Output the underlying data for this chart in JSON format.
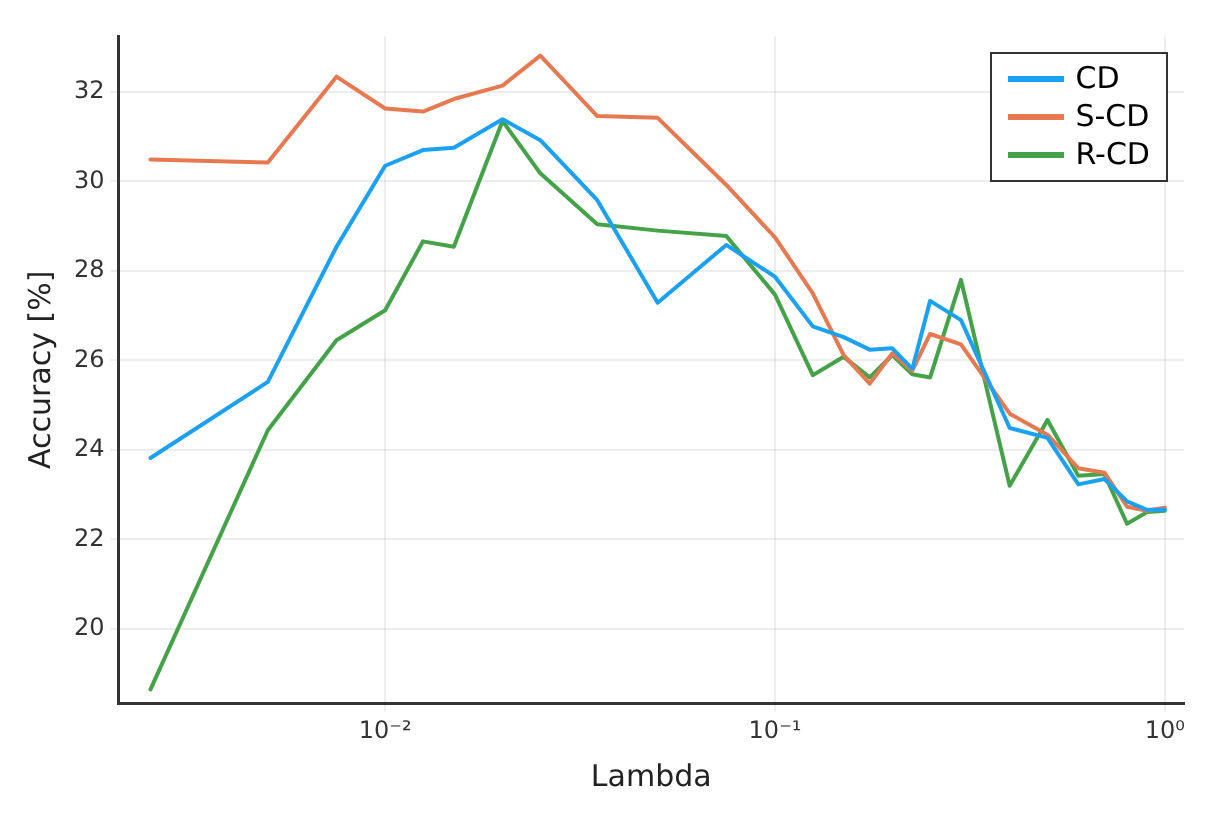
{
  "chart_data": {
    "type": "line",
    "xlabel": "Lambda",
    "ylabel": "Accuracy [%]",
    "x": [
      0.0025,
      0.005,
      0.0075,
      0.01,
      0.0125,
      0.015,
      0.02,
      0.025,
      0.035,
      0.05,
      0.075,
      0.1,
      0.125,
      0.15,
      0.175,
      0.2,
      0.225,
      0.25,
      0.3,
      0.4,
      0.5,
      0.6,
      0.7,
      0.8,
      0.9,
      1.0
    ],
    "series": [
      {
        "name": "CD",
        "color": "#1ba1f2",
        "values": [
          23.82,
          25.52,
          28.54,
          30.35,
          30.7,
          30.75,
          31.39,
          30.92,
          29.58,
          27.29,
          28.58,
          27.87,
          26.76,
          26.52,
          26.24,
          26.27,
          25.81,
          27.33,
          26.9,
          24.49,
          24.27,
          23.23,
          23.35,
          22.85,
          22.66,
          22.66
        ]
      },
      {
        "name": "S-CD",
        "color": "#e6794f",
        "values": [
          30.49,
          30.42,
          32.34,
          31.63,
          31.56,
          31.84,
          32.14,
          32.81,
          31.46,
          31.42,
          29.92,
          28.75,
          27.5,
          26.12,
          25.48,
          26.16,
          25.77,
          26.59,
          26.36,
          24.81,
          24.34,
          23.59,
          23.49,
          22.73,
          22.64,
          22.71
        ]
      },
      {
        "name": "R-CD",
        "color": "#44a348",
        "values": [
          18.65,
          24.44,
          26.45,
          27.12,
          28.66,
          28.54,
          31.35,
          30.18,
          29.04,
          28.9,
          28.78,
          27.47,
          25.67,
          26.08,
          25.62,
          26.12,
          25.69,
          25.62,
          27.8,
          23.2,
          24.67,
          23.42,
          23.46,
          22.35,
          22.61,
          22.64
        ]
      }
    ],
    "log": "x",
    "xlim": [
      0.00207,
      1.12
    ],
    "xticks": [
      {
        "value": 0.01,
        "label": "10⁻²"
      },
      {
        "value": 0.1,
        "label": "10⁻¹"
      },
      {
        "value": 1,
        "label": "10⁰"
      }
    ],
    "ylim": [
      18.34,
      33.24
    ],
    "yticks": [
      20,
      22,
      24,
      26,
      28,
      30,
      32
    ],
    "grid": true,
    "legend": "top right",
    "marker": "none",
    "line_style": "solid"
  }
}
